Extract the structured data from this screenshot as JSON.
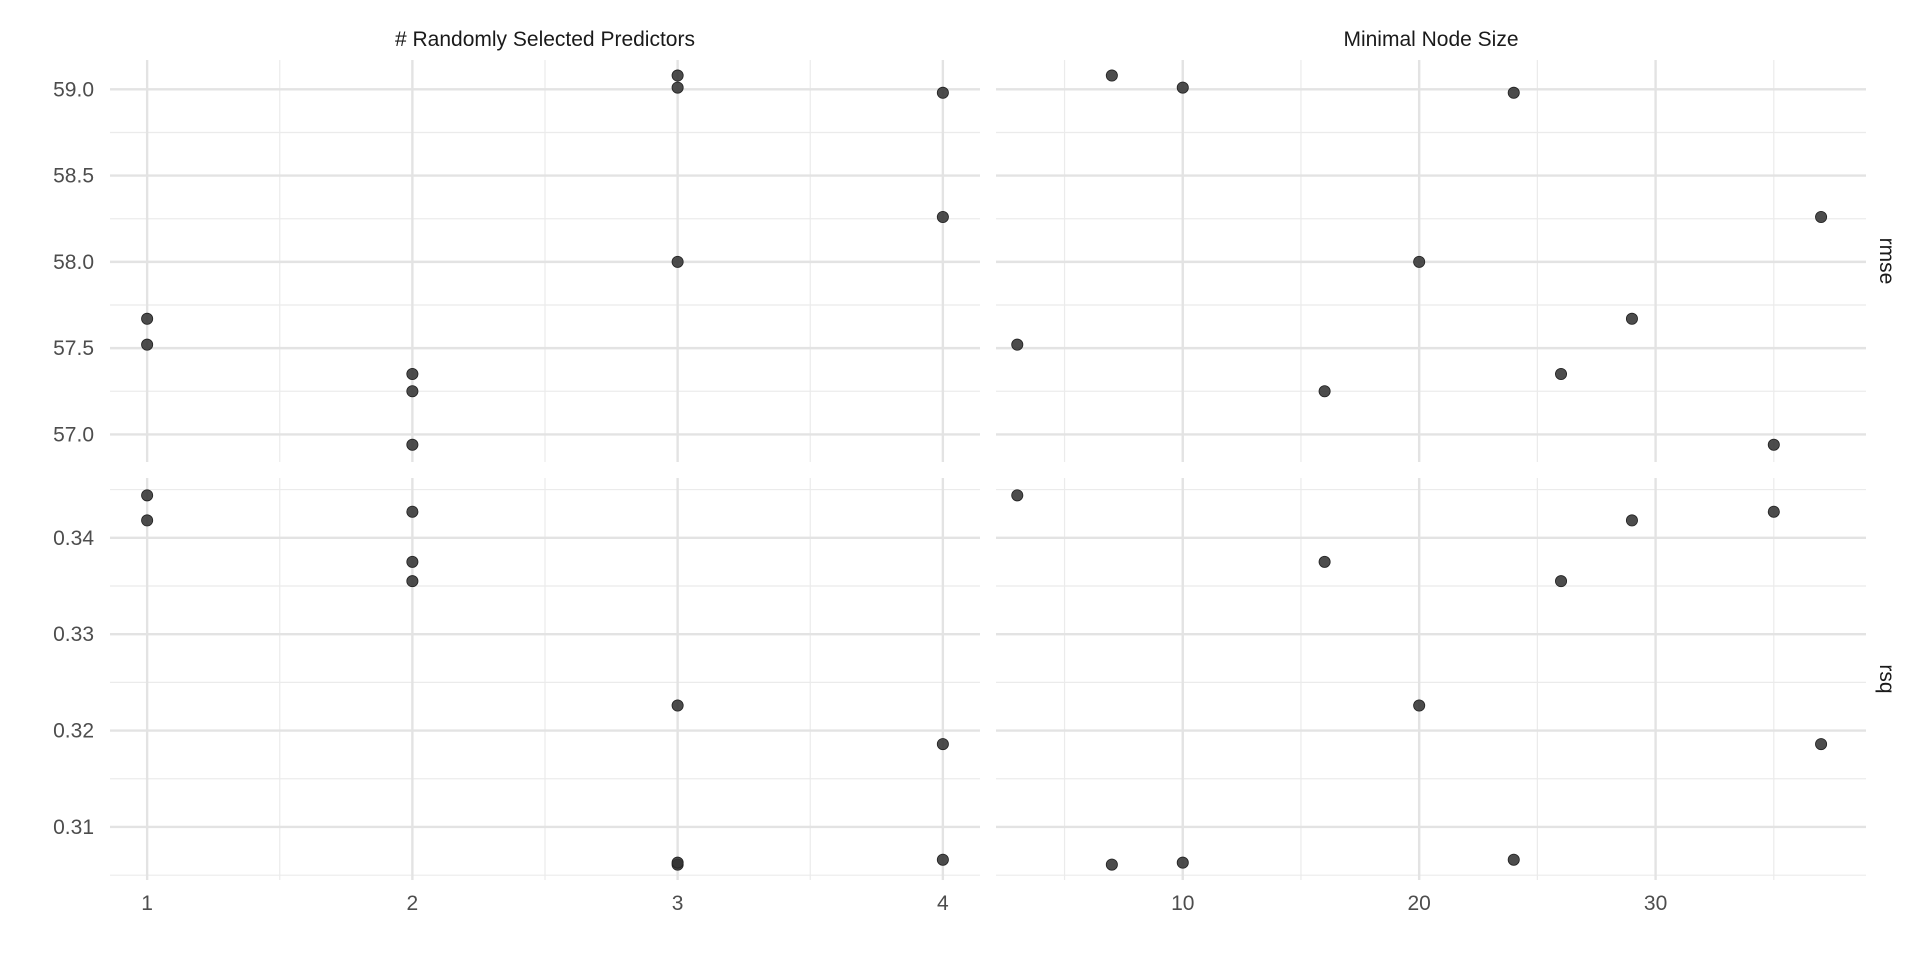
{
  "chart_data": {
    "type": "scatter",
    "facet_columns": [
      {
        "id": "mtry",
        "title": "# Randomly Selected Predictors",
        "xlim": [
          0.86,
          4.14
        ],
        "x_ticks": [
          1,
          2,
          3,
          4
        ],
        "x_tick_labels": [
          "1",
          "2",
          "3",
          "4"
        ],
        "x_minor": [
          1.5,
          2.5,
          3.5
        ]
      },
      {
        "id": "min_n",
        "title": "Minimal Node Size",
        "xlim": [
          2.1,
          38.9
        ],
        "x_ticks": [
          10,
          20,
          30
        ],
        "x_tick_labels": [
          "10",
          "20",
          "30"
        ],
        "x_minor": [
          5,
          15,
          25,
          35
        ]
      }
    ],
    "facet_rows": [
      {
        "id": "rmse",
        "title": "rmse",
        "ylim": [
          56.84,
          59.17
        ],
        "y_ticks": [
          57.0,
          57.5,
          58.0,
          58.5,
          59.0
        ],
        "y_tick_labels": [
          "57.0",
          "57.5",
          "58.0",
          "58.5",
          "59.0"
        ],
        "y_minor": [
          57.25,
          57.75,
          58.25,
          58.75
        ]
      },
      {
        "id": "rsq",
        "title": "rsq",
        "ylim": [
          0.3045,
          0.3462
        ],
        "y_ticks": [
          0.31,
          0.32,
          0.33,
          0.34
        ],
        "y_tick_labels": [
          "0.31",
          "0.32",
          "0.33",
          "0.34"
        ],
        "y_minor": [
          0.305,
          0.315,
          0.325,
          0.335,
          0.345
        ]
      }
    ],
    "point_color": "#333333",
    "grid": true,
    "points": [
      {
        "mtry": 3,
        "min_n": 7,
        "rmse": 59.08,
        "rsq": 0.3061
      },
      {
        "mtry": 3,
        "min_n": 10,
        "rmse": 59.01,
        "rsq": 0.3063
      },
      {
        "mtry": 4,
        "min_n": 24,
        "rmse": 58.98,
        "rsq": 0.3066
      },
      {
        "mtry": 4,
        "min_n": 37,
        "rmse": 58.26,
        "rsq": 0.3186
      },
      {
        "mtry": 3,
        "min_n": 20,
        "rmse": 58.0,
        "rsq": 0.3226
      },
      {
        "mtry": 1,
        "min_n": 29,
        "rmse": 57.67,
        "rsq": 0.3418
      },
      {
        "mtry": 1,
        "min_n": 3,
        "rmse": 57.52,
        "rsq": 0.3444
      },
      {
        "mtry": 2,
        "min_n": 26,
        "rmse": 57.35,
        "rsq": 0.3355
      },
      {
        "mtry": 2,
        "min_n": 16,
        "rmse": 57.25,
        "rsq": 0.3375
      },
      {
        "mtry": 2,
        "min_n": 35,
        "rmse": 56.94,
        "rsq": 0.3427
      }
    ]
  }
}
